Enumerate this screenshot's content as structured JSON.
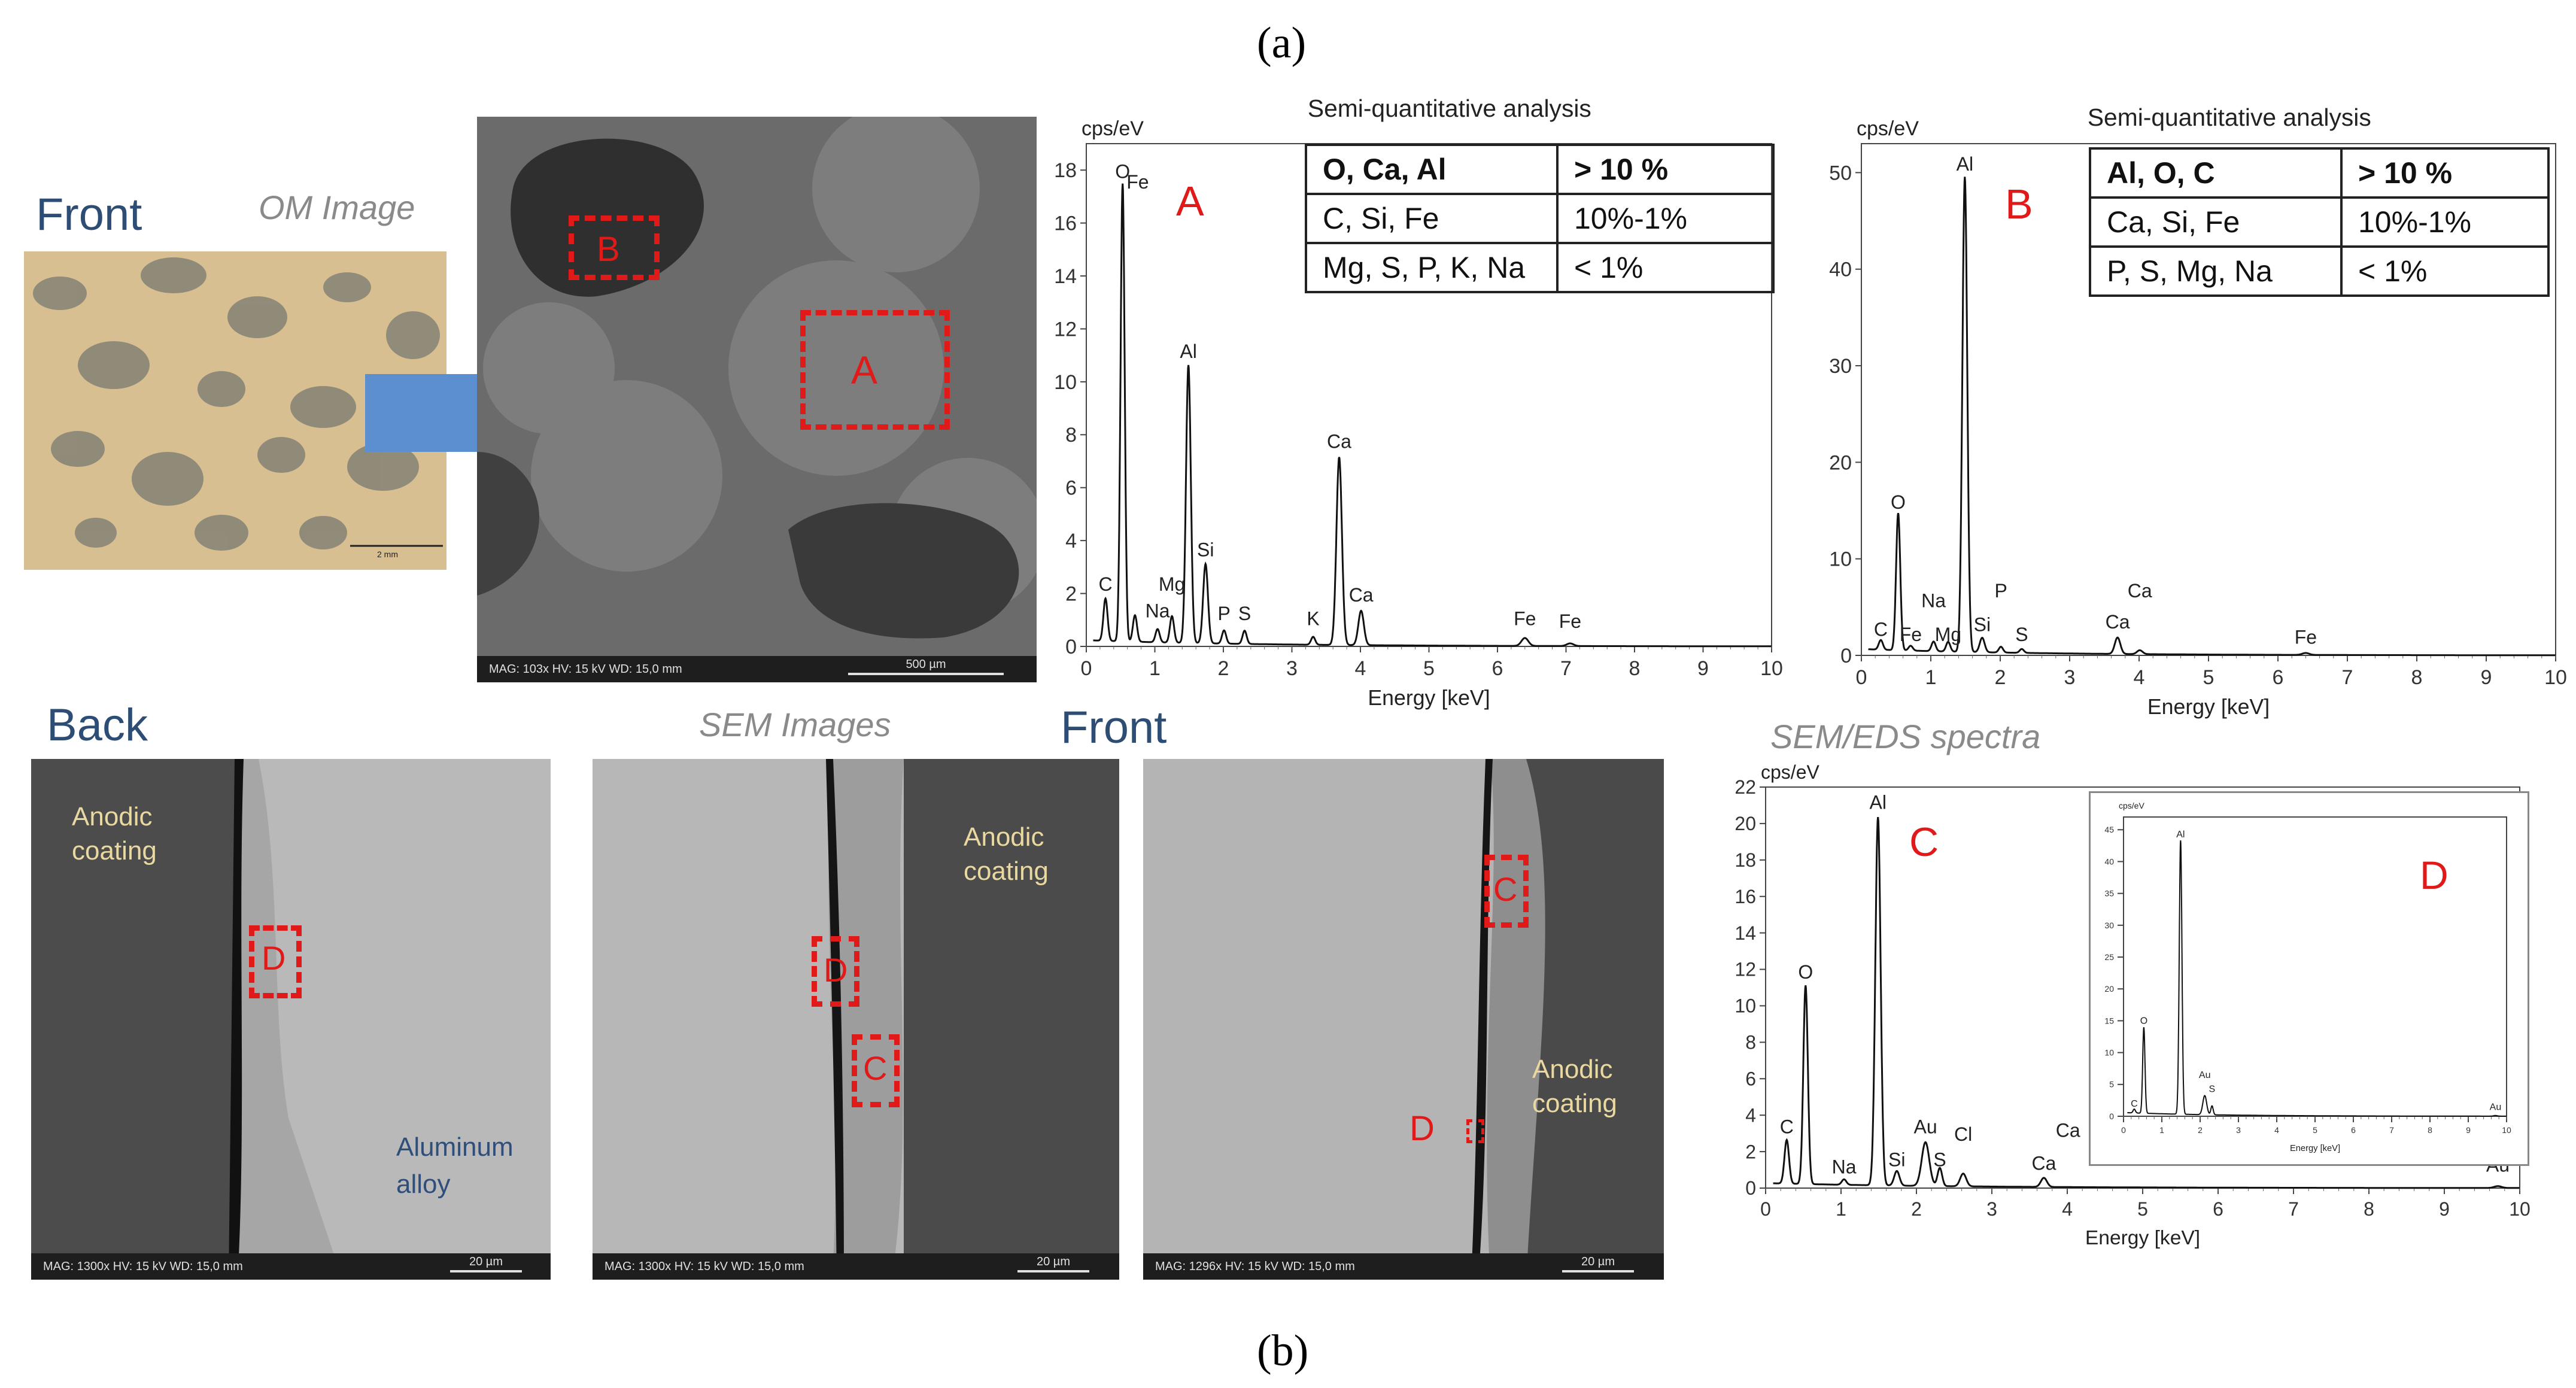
{
  "labels": {
    "a": "(a)",
    "b": "(b)"
  },
  "top": {
    "front": "Front",
    "om_caption": "OM Image",
    "om_scale": "2 mm",
    "sem_info": "MAG: 103x    HV: 15 kV    WD: 15,0 mm",
    "sem_scale": "500 µm",
    "region_a": "A",
    "region_b": "B"
  },
  "bottom": {
    "back": "Back",
    "sem_caption": "SEM Images",
    "front": "Front",
    "eds_caption": "SEM/EDS spectra",
    "img1": {
      "info": "MAG: 1300x   HV: 15 kV   WD: 15,0 mm",
      "scale": "20 µm",
      "anodic": "Anodic\ncoating",
      "alloy": "Aluminum\nalloy",
      "box": "D"
    },
    "img2": {
      "info": "MAG: 1300x   HV: 15 kV   WD: 15,0 mm",
      "scale": "20 µm",
      "anodic": "Anodic\ncoating",
      "box_d": "D",
      "box_c": "C"
    },
    "img3": {
      "info": "MAG: 1296x   HV: 15 kV   WD: 15,0 mm",
      "scale": "20 µm",
      "anodic": "Anodic\ncoating",
      "box_c": "C",
      "box_d": "D"
    }
  },
  "chart_data": [
    {
      "type": "line",
      "id": "spectrum-A",
      "title": "Semi-quantitative  analysis",
      "ylabel": "cps/eV",
      "xlabel": "Energy [keV]",
      "xlim": [
        0,
        10
      ],
      "ylim": [
        0,
        19
      ],
      "xticks": [
        0,
        1,
        2,
        3,
        4,
        5,
        6,
        7,
        8,
        9,
        10
      ],
      "yticks": [
        0,
        2,
        4,
        6,
        8,
        10,
        12,
        14,
        16,
        18
      ],
      "region_label": "A",
      "peaks": [
        {
          "x": 0.28,
          "y": 1.6,
          "w": 0.03
        },
        {
          "x": 0.53,
          "y": 17.3,
          "w": 0.03
        },
        {
          "x": 0.71,
          "y": 1.0,
          "w": 0.03
        },
        {
          "x": 1.04,
          "y": 0.5,
          "w": 0.03
        },
        {
          "x": 1.25,
          "y": 1.0,
          "w": 0.03
        },
        {
          "x": 1.49,
          "y": 10.5,
          "w": 0.035
        },
        {
          "x": 1.74,
          "y": 3.0,
          "w": 0.035
        },
        {
          "x": 2.01,
          "y": 0.5,
          "w": 0.03
        },
        {
          "x": 2.31,
          "y": 0.5,
          "w": 0.03
        },
        {
          "x": 3.31,
          "y": 0.3,
          "w": 0.03
        },
        {
          "x": 3.69,
          "y": 7.1,
          "w": 0.04
        },
        {
          "x": 4.01,
          "y": 1.3,
          "w": 0.04
        },
        {
          "x": 6.4,
          "y": 0.3,
          "w": 0.05
        },
        {
          "x": 7.06,
          "y": 0.1,
          "w": 0.05
        }
      ],
      "annotations": [
        {
          "text": "O",
          "x": 0.53,
          "y": 17.7
        },
        {
          "text": "Fe",
          "x": 0.75,
          "y": 17.3
        },
        {
          "text": "C",
          "x": 0.28,
          "y": 2.1
        },
        {
          "text": "Na",
          "x": 1.04,
          "y": 1.1
        },
        {
          "text": "Mg",
          "x": 1.25,
          "y": 2.1
        },
        {
          "text": "Al",
          "x": 1.49,
          "y": 10.9
        },
        {
          "text": "Si",
          "x": 1.74,
          "y": 3.4
        },
        {
          "text": "P",
          "x": 2.01,
          "y": 1.0
        },
        {
          "text": "S",
          "x": 2.31,
          "y": 1.0
        },
        {
          "text": "K",
          "x": 3.31,
          "y": 0.8
        },
        {
          "text": "Ca",
          "x": 3.69,
          "y": 7.5
        },
        {
          "text": "Ca",
          "x": 4.01,
          "y": 1.7
        },
        {
          "text": "Fe",
          "x": 6.4,
          "y": 0.8
        },
        {
          "text": "Fe",
          "x": 7.06,
          "y": 0.7
        }
      ],
      "table": [
        [
          "O, Ca, Al",
          "> 10 %"
        ],
        [
          "C, Si, Fe",
          "10%-1%"
        ],
        [
          "Mg, S, P, K, Na",
          "< 1%"
        ]
      ]
    },
    {
      "type": "line",
      "id": "spectrum-B",
      "title": "Semi-quantitative  analysis",
      "ylabel": "cps/eV",
      "xlabel": "Energy [keV]",
      "xlim": [
        0,
        10
      ],
      "ylim": [
        0,
        53
      ],
      "xticks": [
        0,
        1,
        2,
        3,
        4,
        5,
        6,
        7,
        8,
        9,
        10
      ],
      "yticks": [
        0,
        10,
        20,
        30,
        40,
        50
      ],
      "region_label": "B",
      "peaks": [
        {
          "x": 0.28,
          "y": 1.0,
          "w": 0.03
        },
        {
          "x": 0.53,
          "y": 14.2,
          "w": 0.03
        },
        {
          "x": 0.71,
          "y": 0.5,
          "w": 0.03
        },
        {
          "x": 1.04,
          "y": 1.0,
          "w": 0.03
        },
        {
          "x": 1.25,
          "y": 1.0,
          "w": 0.03
        },
        {
          "x": 1.49,
          "y": 49.2,
          "w": 0.035
        },
        {
          "x": 1.74,
          "y": 1.5,
          "w": 0.035
        },
        {
          "x": 2.01,
          "y": 0.6,
          "w": 0.03
        },
        {
          "x": 2.31,
          "y": 0.4,
          "w": 0.03
        },
        {
          "x": 3.69,
          "y": 1.7,
          "w": 0.04
        },
        {
          "x": 4.01,
          "y": 0.4,
          "w": 0.04
        },
        {
          "x": 6.4,
          "y": 0.2,
          "w": 0.05
        }
      ],
      "annotations": [
        {
          "text": "Al",
          "x": 1.49,
          "y": 50.2
        },
        {
          "text": "O",
          "x": 0.53,
          "y": 15.2
        },
        {
          "text": "C",
          "x": 0.28,
          "y": 2.0
        },
        {
          "text": "Fe",
          "x": 0.71,
          "y": 1.5
        },
        {
          "text": "Na",
          "x": 1.04,
          "y": 5.0
        },
        {
          "text": "Mg",
          "x": 1.25,
          "y": 1.5
        },
        {
          "text": "Si",
          "x": 1.74,
          "y": 2.5
        },
        {
          "text": "P",
          "x": 2.01,
          "y": 6.0
        },
        {
          "text": "S",
          "x": 2.31,
          "y": 1.5
        },
        {
          "text": "Ca",
          "x": 3.69,
          "y": 2.8
        },
        {
          "text": "Ca",
          "x": 4.01,
          "y": 6.0
        },
        {
          "text": "Fe",
          "x": 6.4,
          "y": 1.2
        }
      ],
      "table": [
        [
          "Al, O, C",
          "> 10 %"
        ],
        [
          "Ca, Si, Fe",
          "10%-1%"
        ],
        [
          "P, S, Mg, Na",
          "< 1%"
        ]
      ]
    },
    {
      "type": "line",
      "id": "spectrum-C",
      "ylabel": "cps/eV",
      "xlabel": "Energy [keV]",
      "xlim": [
        0,
        10
      ],
      "ylim": [
        0,
        22
      ],
      "xticks": [
        0,
        1,
        2,
        3,
        4,
        5,
        6,
        7,
        8,
        9,
        10
      ],
      "yticks": [
        0,
        2,
        4,
        6,
        8,
        10,
        12,
        14,
        16,
        18,
        20,
        22
      ],
      "region_label": "C",
      "peaks": [
        {
          "x": 0.28,
          "y": 2.4,
          "w": 0.03
        },
        {
          "x": 0.53,
          "y": 10.9,
          "w": 0.03
        },
        {
          "x": 1.04,
          "y": 0.3,
          "w": 0.03
        },
        {
          "x": 1.49,
          "y": 20.2,
          "w": 0.035
        },
        {
          "x": 1.74,
          "y": 0.8,
          "w": 0.035
        },
        {
          "x": 2.12,
          "y": 2.4,
          "w": 0.05
        },
        {
          "x": 2.31,
          "y": 1.0,
          "w": 0.03
        },
        {
          "x": 2.62,
          "y": 0.7,
          "w": 0.04
        },
        {
          "x": 3.69,
          "y": 0.5,
          "w": 0.04
        },
        {
          "x": 9.71,
          "y": 0.1,
          "w": 0.05
        }
      ],
      "annotations": [
        {
          "text": "Al",
          "x": 1.49,
          "y": 20.8
        },
        {
          "text": "O",
          "x": 0.53,
          "y": 11.5
        },
        {
          "text": "C",
          "x": 0.28,
          "y": 3.0
        },
        {
          "text": "Na",
          "x": 1.04,
          "y": 0.8
        },
        {
          "text": "Si",
          "x": 1.74,
          "y": 1.2
        },
        {
          "text": "Au",
          "x": 2.12,
          "y": 3.0
        },
        {
          "text": "S",
          "x": 2.31,
          "y": 1.2
        },
        {
          "text": "Cl",
          "x": 2.62,
          "y": 2.6
        },
        {
          "text": "Ca",
          "x": 3.69,
          "y": 1.0
        },
        {
          "text": "Ca",
          "x": 4.01,
          "y": 2.8
        },
        {
          "text": "Au",
          "x": 9.71,
          "y": 0.9
        }
      ]
    },
    {
      "type": "line",
      "id": "spectrum-D",
      "ylabel": "cps/eV",
      "xlabel": "Energy [keV]",
      "xlim": [
        0,
        10
      ],
      "ylim": [
        0,
        47
      ],
      "xticks": [
        0,
        1,
        2,
        3,
        4,
        5,
        6,
        7,
        8,
        9,
        10
      ],
      "yticks": [
        0,
        5,
        10,
        15,
        20,
        25,
        30,
        35,
        40,
        45
      ],
      "region_label": "D",
      "peaks": [
        {
          "x": 0.28,
          "y": 0.6,
          "w": 0.03
        },
        {
          "x": 0.53,
          "y": 13.5,
          "w": 0.03
        },
        {
          "x": 1.49,
          "y": 43.0,
          "w": 0.035
        },
        {
          "x": 2.12,
          "y": 3.0,
          "w": 0.05
        },
        {
          "x": 2.31,
          "y": 1.4,
          "w": 0.03
        },
        {
          "x": 9.71,
          "y": 0.1,
          "w": 0.05
        }
      ],
      "annotations": [
        {
          "text": "Al",
          "x": 1.49,
          "y": 43.8
        },
        {
          "text": "O",
          "x": 0.53,
          "y": 14.5
        },
        {
          "text": "C",
          "x": 0.28,
          "y": 1.5
        },
        {
          "text": "Au",
          "x": 2.12,
          "y": 6.0
        },
        {
          "text": "S",
          "x": 2.31,
          "y": 3.8
        },
        {
          "text": "Au",
          "x": 9.71,
          "y": 1.0
        }
      ]
    }
  ]
}
